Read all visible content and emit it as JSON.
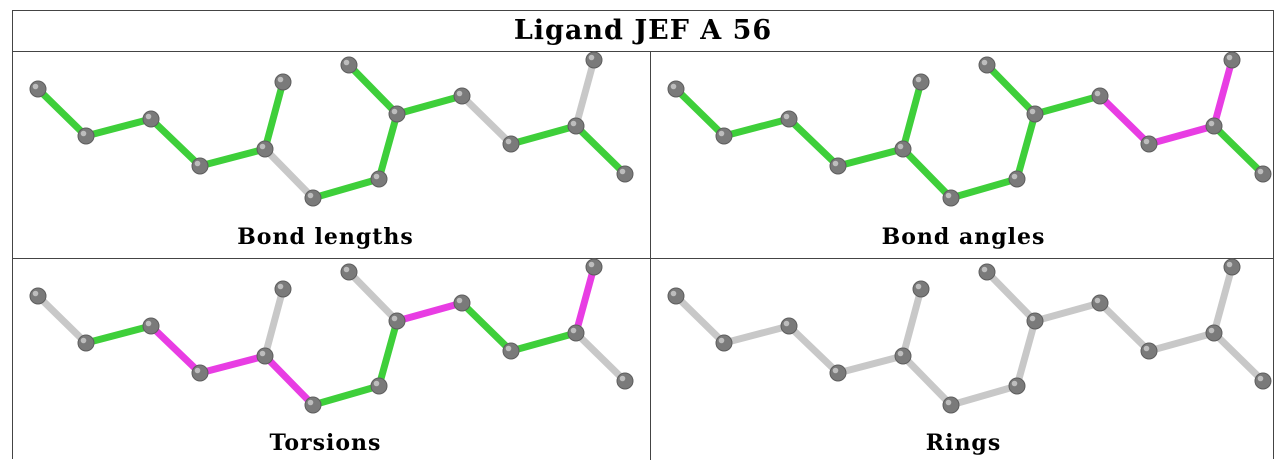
{
  "title": "Ligand JEF A 56",
  "colors": {
    "ok": "#3ecf3a",
    "outlier": "#e83de3",
    "neutral": "#c8c8c8",
    "atom": "#7a7a7a",
    "atom_highlight": "#bdbdbd"
  },
  "panels": [
    {
      "caption": "Bond lengths",
      "bond_colors": [
        "ok",
        "ok",
        "ok",
        "ok",
        "ok",
        "neutral",
        "ok",
        "ok",
        "ok",
        "ok",
        "neutral",
        "ok",
        "neutral",
        "ok",
        "ok",
        "ok"
      ]
    },
    {
      "caption": "Bond angles",
      "bond_colors": [
        "ok",
        "ok",
        "ok",
        "ok",
        "ok",
        "ok",
        "ok",
        "ok",
        "ok",
        "ok",
        "outlier",
        "outlier",
        "outlier",
        "ok",
        "ok",
        "ok"
      ]
    },
    {
      "caption": "Torsions",
      "bond_colors": [
        "neutral",
        "ok",
        "outlier",
        "outlier",
        "neutral",
        "outlier",
        "ok",
        "ok",
        "neutral",
        "outlier",
        "ok",
        "ok",
        "outlier",
        "neutral",
        "neutral",
        "neutral"
      ]
    },
    {
      "caption": "Rings",
      "bond_colors": [
        "neutral",
        "neutral",
        "neutral",
        "neutral",
        "neutral",
        "neutral",
        "neutral",
        "neutral",
        "neutral",
        "neutral",
        "neutral",
        "neutral",
        "neutral",
        "neutral",
        "neutral",
        "neutral"
      ]
    }
  ]
}
